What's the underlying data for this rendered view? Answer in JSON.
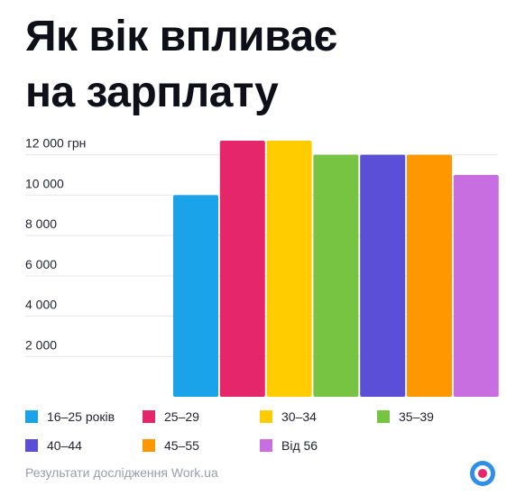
{
  "title": {
    "line1": "Як вік впливає",
    "line2": "на зарплату"
  },
  "chart_data": {
    "type": "bar",
    "title": "Як вік впливає на зарплату",
    "categories": [
      "16–25 років",
      "25–29",
      "30–34",
      "35–39",
      "40–44",
      "45–55",
      "Від 56"
    ],
    "values": [
      10000,
      12700,
      12700,
      12000,
      12000,
      12000,
      11000
    ],
    "colors": [
      "#1aa3e8",
      "#e5266a",
      "#ffcc00",
      "#76c442",
      "#5a4fd6",
      "#ff9800",
      "#c86ee0"
    ],
    "ylim": [
      0,
      12700
    ],
    "yticks": [
      {
        "value": 2000,
        "label": "2 000"
      },
      {
        "value": 4000,
        "label": "4 000"
      },
      {
        "value": 6000,
        "label": "6 000"
      },
      {
        "value": 8000,
        "label": "8 000"
      },
      {
        "value": 10000,
        "label": "10 000"
      },
      {
        "value": 12000,
        "label": "12 000 грн"
      }
    ],
    "grid": true,
    "legend": "bottom"
  },
  "legend": [
    {
      "label": "16–25 років",
      "color": "#1aa3e8"
    },
    {
      "label": "25–29",
      "color": "#e5266a"
    },
    {
      "label": "30–34",
      "color": "#ffcc00"
    },
    {
      "label": "35–39",
      "color": "#76c442"
    },
    {
      "label": "40–44",
      "color": "#5a4fd6"
    },
    {
      "label": "45–55",
      "color": "#ff9800"
    },
    {
      "label": "Від 56",
      "color": "#c86ee0"
    }
  ],
  "footer": {
    "source": "Результати дослідження Work.ua",
    "logo_icon": "workua-logo-icon"
  }
}
